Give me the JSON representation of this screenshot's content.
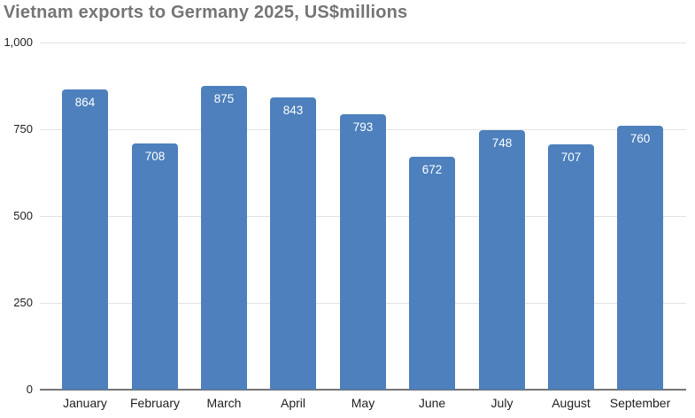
{
  "chart_data": {
    "type": "bar",
    "title": "Vietnam exports to Germany 2025, US$millions",
    "categories": [
      "January",
      "February",
      "March",
      "April",
      "May",
      "June",
      "July",
      "August",
      "September"
    ],
    "values": [
      864,
      708,
      875,
      843,
      793,
      672,
      748,
      707,
      760
    ],
    "xlabel": "",
    "ylabel": "",
    "ylim": [
      0,
      1000
    ],
    "yticks": [
      {
        "value": 0,
        "label": "0"
      },
      {
        "value": 250,
        "label": "250"
      },
      {
        "value": 500,
        "label": "500"
      },
      {
        "value": 750,
        "label": "750"
      },
      {
        "value": 1000,
        "label": "1,000"
      }
    ],
    "grid": true,
    "legend": "none",
    "value_labels": "inside-top",
    "colors": {
      "bar": "#4d80bc",
      "value_label": "#ffffff",
      "title": "#757575",
      "gridline": "#e3e3e3",
      "axis_line": "#757575",
      "tick_label": "#1f1f1f",
      "background": "#ffffff"
    }
  }
}
